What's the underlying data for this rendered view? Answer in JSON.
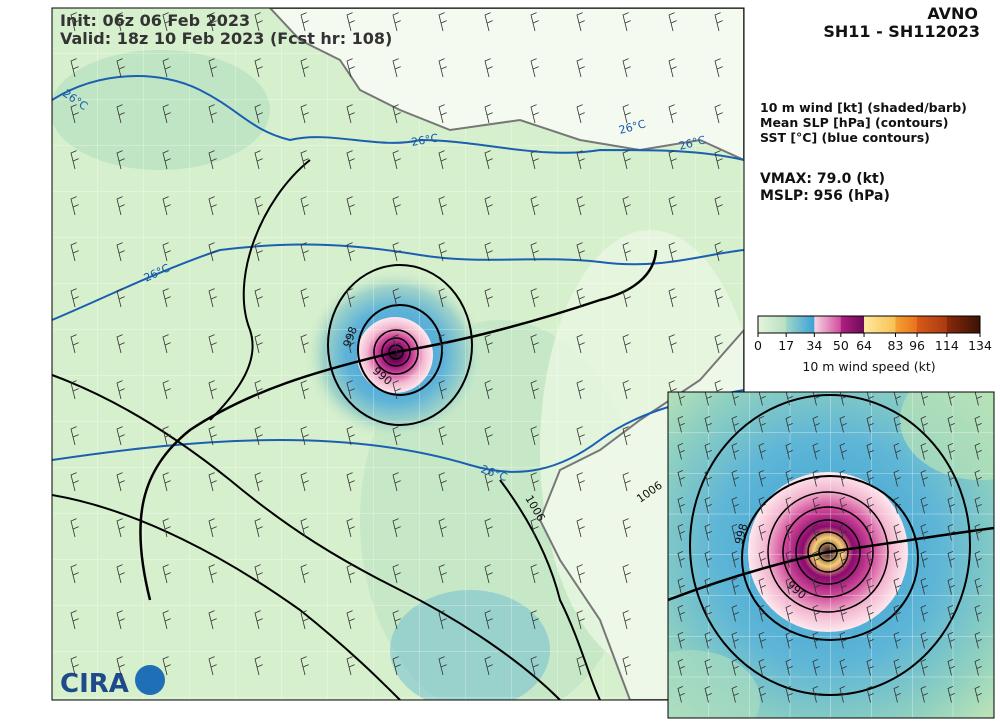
{
  "header": {
    "init": "Init:   06z 06 Feb 2023",
    "valid": "Valid: 18z 10 Feb 2023 (Fcst hr: 108)",
    "model": "AVNO",
    "storm_id": "SH11 - SH112023"
  },
  "legend": {
    "lines": [
      "10 m wind [kt] (shaded/barb)",
      "Mean SLP [hPa] (contours)",
      "SST [°C] (blue contours)"
    ],
    "vmax": "VMAX:  79.0 (kt)",
    "mslp": "MSLP:  956 (hPa)"
  },
  "colorbar": {
    "ticks": [
      0,
      17,
      34,
      50,
      64,
      83,
      96,
      114,
      134
    ],
    "label": "10 m wind speed (kt)"
  },
  "map": {
    "contour_labels": [
      "998",
      "990",
      "1006",
      "1006"
    ],
    "sst_labels": [
      "26°C",
      "26°C",
      "26°C",
      "26°C",
      "26°C",
      "26°C"
    ],
    "logo": "CIRA"
  },
  "inset": {
    "contour_labels": [
      "998",
      "990"
    ]
  }
}
